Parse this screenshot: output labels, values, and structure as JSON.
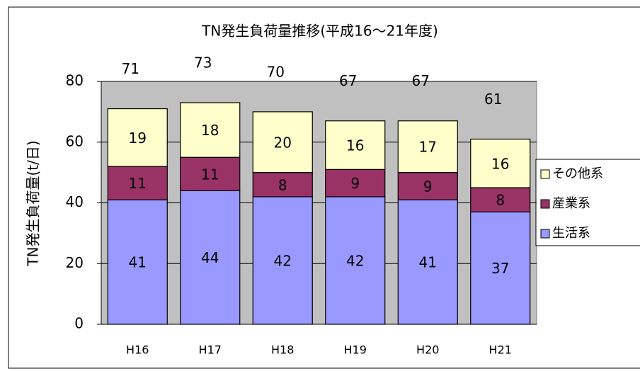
{
  "chart_data": {
    "type": "stacked_bar",
    "title": "TN発生負荷量推移(平成16～21年度)",
    "y_label": "TN発生負荷量(t/日)",
    "categories": [
      "H16",
      "H17",
      "H18",
      "H19",
      "H20",
      "H21"
    ],
    "series": [
      {
        "name": "生活系",
        "color": "#9999ff",
        "values": [
          41,
          44,
          42,
          42,
          41,
          37
        ]
      },
      {
        "name": "産業系",
        "color": "#993366",
        "values": [
          11,
          11,
          8,
          9,
          9,
          8
        ]
      },
      {
        "name": "その他系",
        "color": "#ffffcc",
        "values": [
          19,
          18,
          20,
          16,
          17,
          16
        ]
      }
    ],
    "totals": [
      71,
      73,
      70,
      67,
      67,
      61
    ],
    "ylim": [
      0,
      80
    ],
    "yticks": [
      0,
      20,
      40,
      60,
      80
    ],
    "grid": true,
    "legend": "right"
  }
}
